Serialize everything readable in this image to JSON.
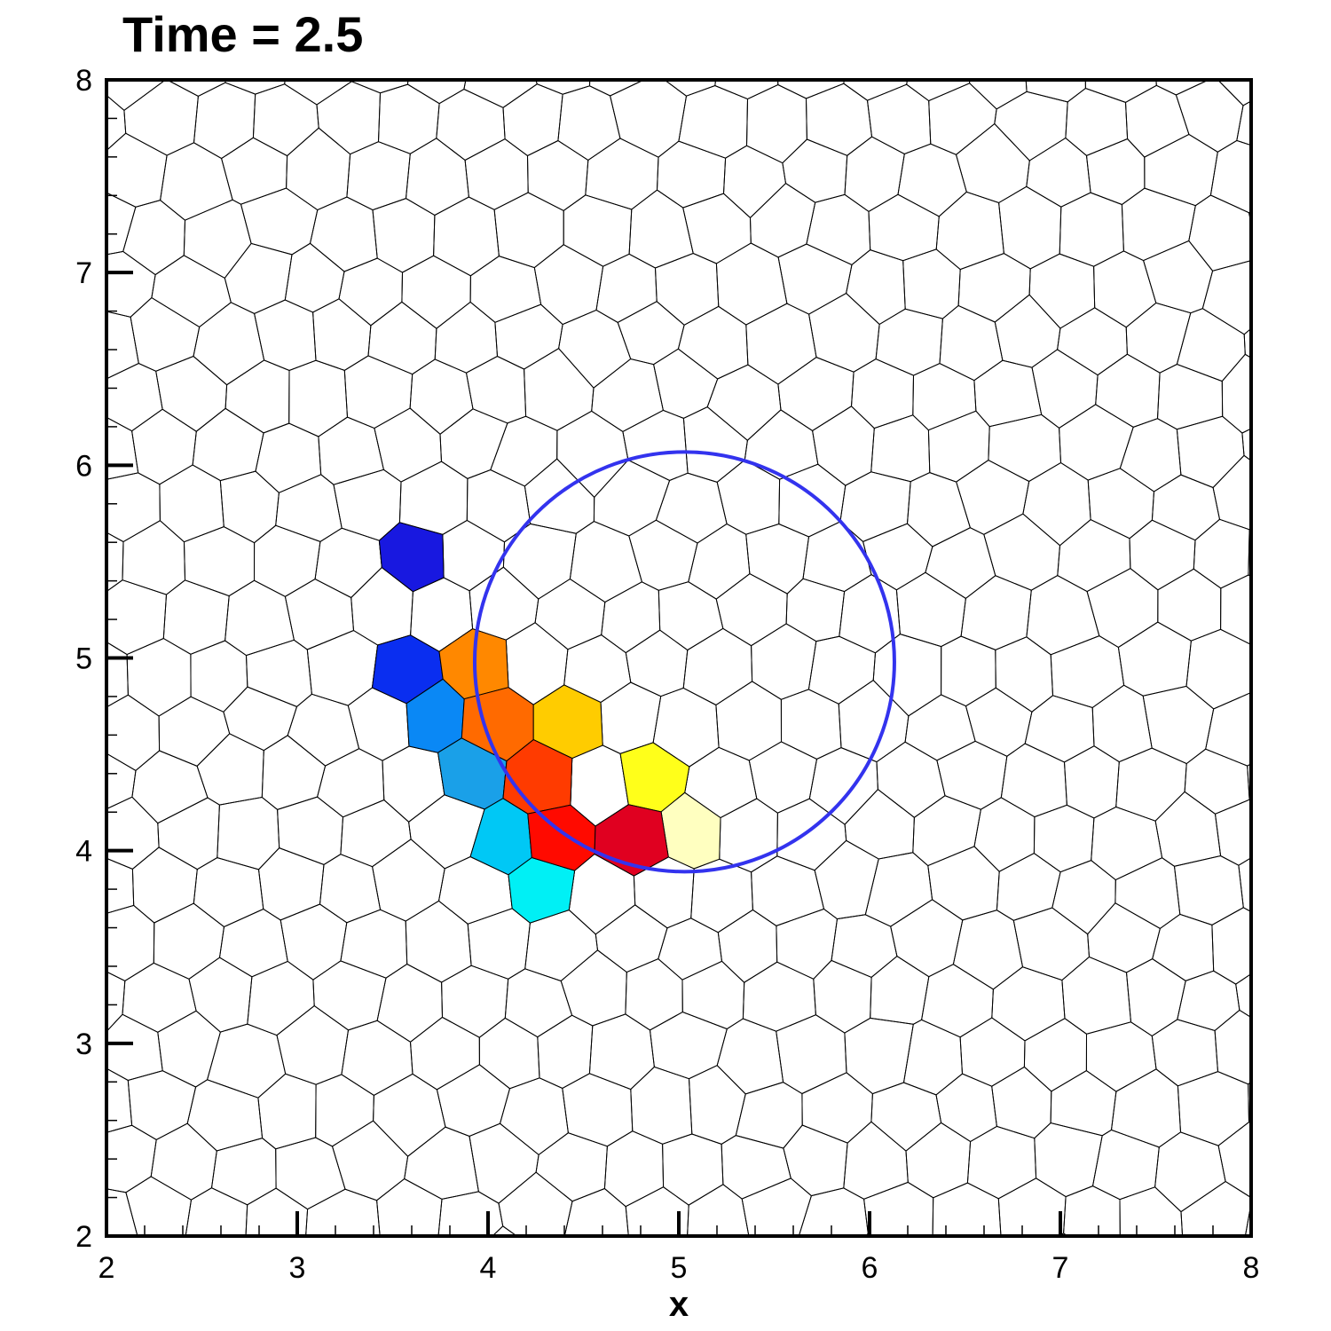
{
  "chart_data": {
    "type": "mesh",
    "title": "Time = 2.5",
    "xlabel": "x",
    "ylabel": "",
    "xlim": [
      2,
      8
    ],
    "ylim": [
      2,
      8
    ],
    "x_ticks": [
      "2",
      "3",
      "4",
      "5",
      "6",
      "7",
      "8"
    ],
    "y_ticks": [
      "2",
      "3",
      "4",
      "5",
      "6",
      "7",
      "8"
    ],
    "circle": {
      "cx": 5.03,
      "cy": 4.98,
      "r": 1.1,
      "color": "#3333ee"
    },
    "colored_cells": [
      {
        "x": 3.65,
        "y": 5.43,
        "color": "#1818e0"
      },
      {
        "x": 3.63,
        "y": 5.03,
        "color": "#0a2ef0"
      },
      {
        "x": 3.68,
        "y": 4.63,
        "color": "#0a88f5"
      },
      {
        "x": 3.82,
        "y": 4.3,
        "color": "#1aa0e8"
      },
      {
        "x": 3.98,
        "y": 4.07,
        "color": "#00c8f5"
      },
      {
        "x": 4.18,
        "y": 3.9,
        "color": "#00f0f5"
      },
      {
        "x": 3.93,
        "y": 4.88,
        "color": "#ff8800"
      },
      {
        "x": 4.08,
        "y": 4.6,
        "color": "#ff6a00"
      },
      {
        "x": 4.27,
        "y": 4.73,
        "color": "#ffcc00"
      },
      {
        "x": 4.43,
        "y": 4.42,
        "color": "#ffee00"
      },
      {
        "x": 4.73,
        "y": 4.33,
        "color": "#ffff1a"
      },
      {
        "x": 5.05,
        "y": 4.25,
        "color": "#ffffc0"
      },
      {
        "x": 4.17,
        "y": 4.22,
        "color": "#ff3b00"
      },
      {
        "x": 4.47,
        "y": 4.07,
        "color": "#ff0a00"
      },
      {
        "x": 4.8,
        "y": 3.95,
        "color": "#e00020"
      }
    ]
  }
}
